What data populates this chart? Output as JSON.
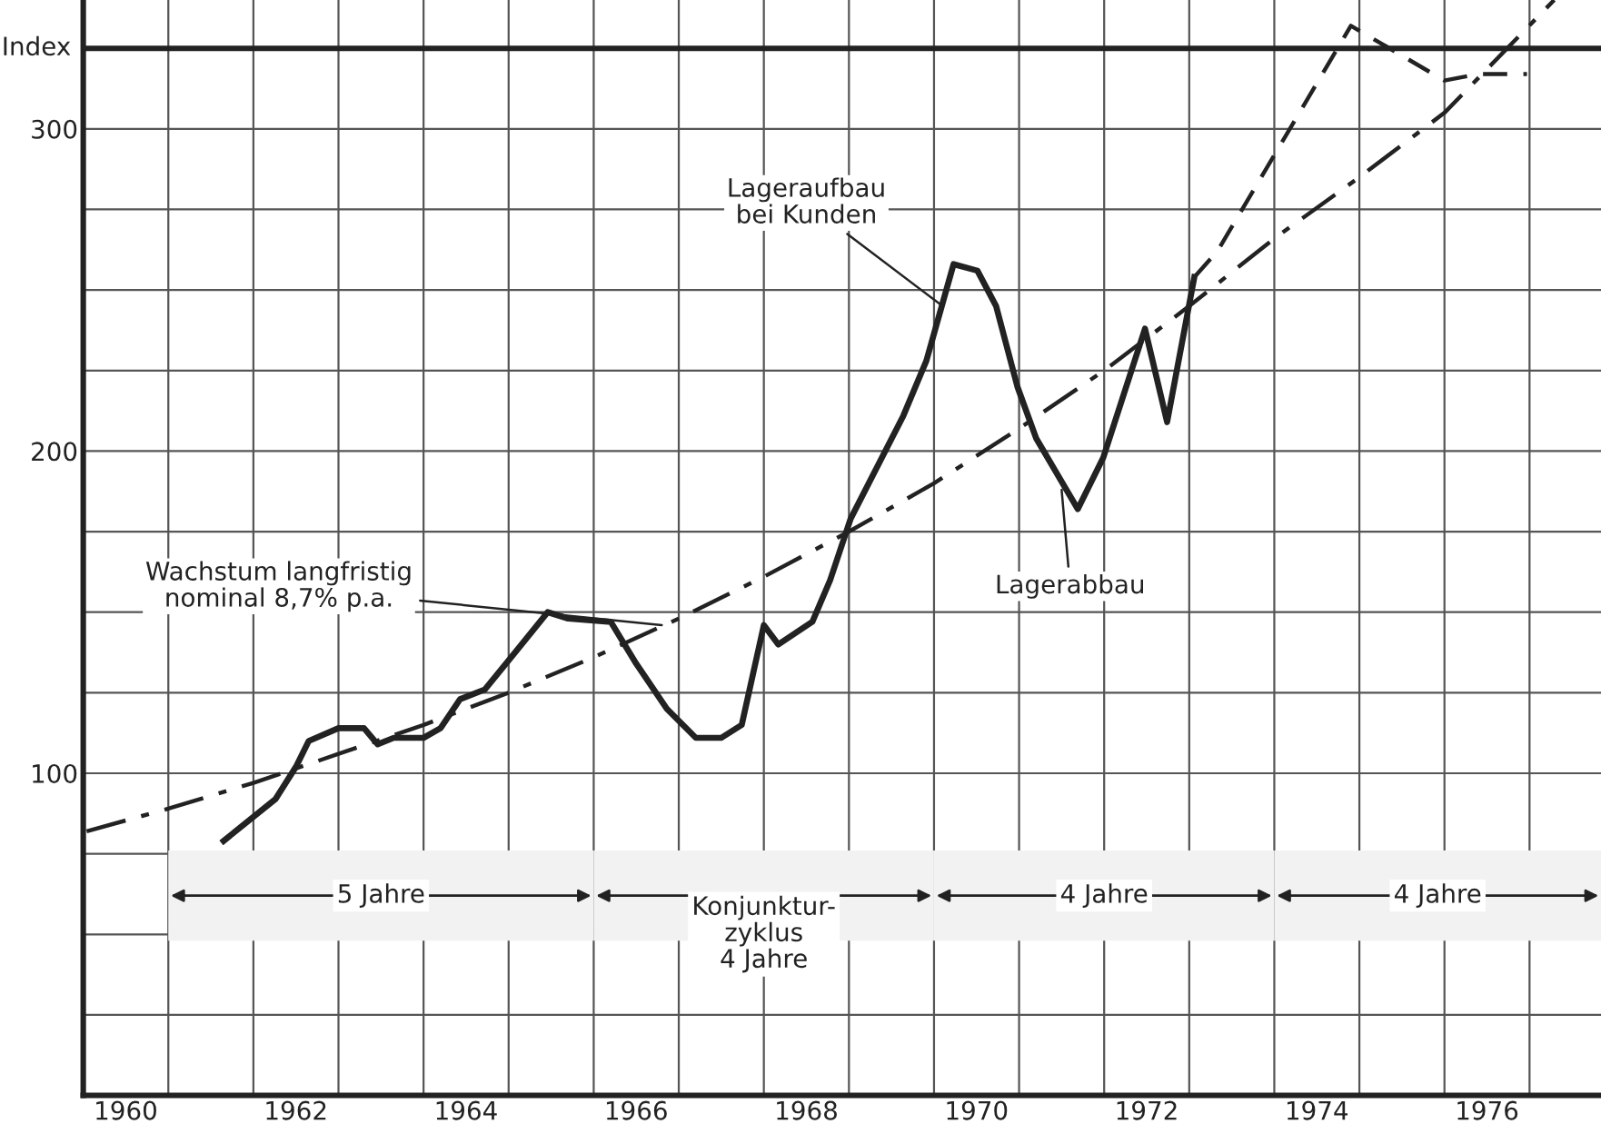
{
  "chart_data": {
    "type": "line",
    "ylabel": "Index",
    "xlim": [
      1960,
      1977.84
    ],
    "ylim": [
      0,
      340
    ],
    "xticks": [
      {
        "value": 1960,
        "label": null
      },
      {
        "value": 1961,
        "label": null
      },
      {
        "value": 1962,
        "label": null
      },
      {
        "value": 1963,
        "label": null
      },
      {
        "value": 1964,
        "label": null
      },
      {
        "value": 1965,
        "label": null
      },
      {
        "value": 1966,
        "label": null
      },
      {
        "value": 1967,
        "label": null
      },
      {
        "value": 1968,
        "label": null
      },
      {
        "value": 1969,
        "label": null
      },
      {
        "value": 1970,
        "label": null
      },
      {
        "value": 1971,
        "label": null
      },
      {
        "value": 1972,
        "label": null
      },
      {
        "value": 1973,
        "label": null
      },
      {
        "value": 1974,
        "label": null
      },
      {
        "value": 1975,
        "label": null
      },
      {
        "value": 1976,
        "label": null
      },
      {
        "value": 1977,
        "label": null
      },
      {
        "value": 1960.5,
        "label": "1960"
      },
      {
        "value": 1962.5,
        "label": "1962"
      },
      {
        "value": 1964.5,
        "label": "1964"
      },
      {
        "value": 1966.5,
        "label": "1966"
      },
      {
        "value": 1968.5,
        "label": "1968"
      },
      {
        "value": 1970.5,
        "label": "1970"
      },
      {
        "value": 1972.5,
        "label": "1972"
      },
      {
        "value": 1974.5,
        "label": "1974"
      },
      {
        "value": 1976.5,
        "label": "1976"
      }
    ],
    "yticks": [
      {
        "value": 0,
        "label": null
      },
      {
        "value": 25,
        "label": null
      },
      {
        "value": 50,
        "label": null
      },
      {
        "value": 75,
        "label": null
      },
      100,
      {
        "value": 125,
        "label": null
      },
      {
        "value": 150,
        "label": null
      },
      {
        "value": 175,
        "label": null
      },
      200,
      {
        "value": 225,
        "label": null
      },
      {
        "value": 250,
        "label": null
      },
      {
        "value": 275,
        "label": null
      },
      300
    ],
    "grid": true,
    "series": [
      {
        "color": "#222222",
        "line_style": "solid",
        "x": [
          1961.65,
          1962.26,
          1962.5,
          1962.65,
          1963.0,
          1963.3,
          1963.46,
          1963.65,
          1964.0,
          1964.2,
          1964.43,
          1964.72,
          1965.06,
          1965.46,
          1965.7,
          1966.2,
          1966.5,
          1966.86,
          1967.2,
          1967.5,
          1967.74,
          1968.0,
          1968.17,
          1968.57,
          1968.78,
          1969.02,
          1969.64,
          1969.91,
          1970.23,
          1970.51,
          1970.73,
          1970.98,
          1971.2,
          1971.69,
          1971.99,
          1972.48,
          1972.74,
          1973.06
        ],
        "values": [
          79,
          92,
          102,
          110,
          114,
          114,
          109,
          111,
          111,
          114,
          123,
          126,
          137,
          150,
          148,
          147,
          134,
          120,
          111,
          111,
          115,
          146,
          140,
          147,
          160,
          179,
          211,
          228,
          258,
          256,
          245,
          220,
          204,
          182,
          198,
          238,
          209,
          254
        ]
      },
      {
        "color": "#222222",
        "line_style": "dashed",
        "x": [
          1973.06,
          1973.33,
          1974.9,
          1976.0,
          1976.4,
          1976.97
        ],
        "values": [
          254,
          262,
          332,
          315,
          317,
          317
        ]
      },
      {
        "color": "#222222",
        "line_style": "dashdot",
        "x": [
          1960.04,
          1961,
          1962,
          1963,
          1964,
          1965,
          1966,
          1967,
          1968,
          1969,
          1970,
          1971,
          1972,
          1973,
          1974,
          1975,
          1976,
          1977.29
        ],
        "values": [
          82,
          89,
          97,
          106,
          115,
          125,
          136,
          148,
          161,
          175,
          190,
          207,
          225,
          245,
          266,
          285,
          305,
          340
        ]
      }
    ],
    "ref_lines": [
      {
        "axis": "y",
        "value": 325,
        "color": "#222222"
      }
    ],
    "bands": [
      {
        "axis": "x",
        "from": 1961,
        "to": 1966,
        "label": "5 Jahre"
      },
      {
        "axis": "x",
        "from": 1966,
        "to": 1970,
        "label": "Konjunktur-\nzyklus\n4 Jahre"
      },
      {
        "axis": "x",
        "from": 1970,
        "to": 1974,
        "label": "4 Jahre"
      },
      {
        "axis": "x",
        "from": 1974,
        "to": 1977.84,
        "label": "4 Jahre"
      }
    ],
    "annotations": [
      {
        "text": "Lageraufbau\nbei Kunden",
        "x": 1970.1,
        "y": 245
      },
      {
        "text": "Lagerabbau",
        "x": 1971.5,
        "y": 188
      },
      {
        "text": "Wachstum langfristig\nnominal 8,7% p.a.",
        "x": 1966.8,
        "y": 146
      }
    ]
  }
}
